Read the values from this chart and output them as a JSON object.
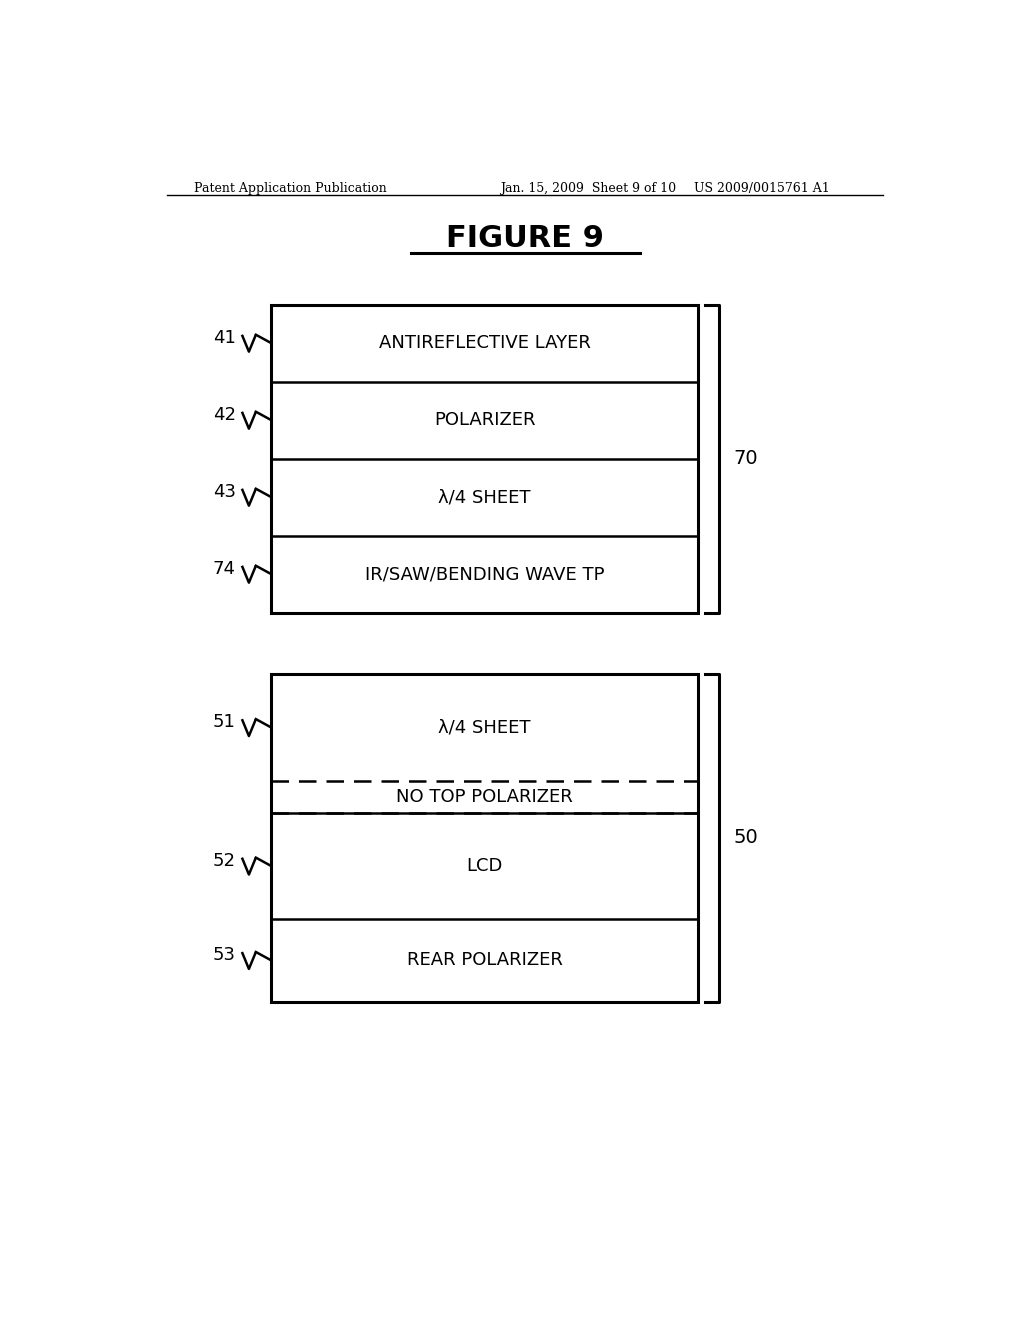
{
  "header_left": "Patent Application Publication",
  "header_center": "Jan. 15, 2009  Sheet 9 of 10",
  "header_right": "US 2009/0015761 A1",
  "figure_title": "FIGURE 9",
  "bg_color": "#ffffff",
  "group1": {
    "label": "70",
    "layers": [
      {
        "id": "41",
        "text": "ANTIREFLECTIVE LAYER",
        "dashed": false
      },
      {
        "id": "42",
        "text": "POLARIZER",
        "dashed": false
      },
      {
        "id": "43",
        "text": "λ/4 SHEET",
        "dashed": false
      },
      {
        "id": "74",
        "text": "IR/SAW/BENDING WAVE TP",
        "dashed": false
      }
    ]
  },
  "group2": {
    "label": "50",
    "layers": [
      {
        "id": "51",
        "text": "λ/4 SHEET",
        "dashed": false
      },
      {
        "id": "",
        "text": "NO TOP POLARIZER",
        "dashed": true
      },
      {
        "id": "52",
        "text": "LCD",
        "dashed": false
      },
      {
        "id": "53",
        "text": "REAR POLARIZER",
        "dashed": false
      }
    ]
  }
}
